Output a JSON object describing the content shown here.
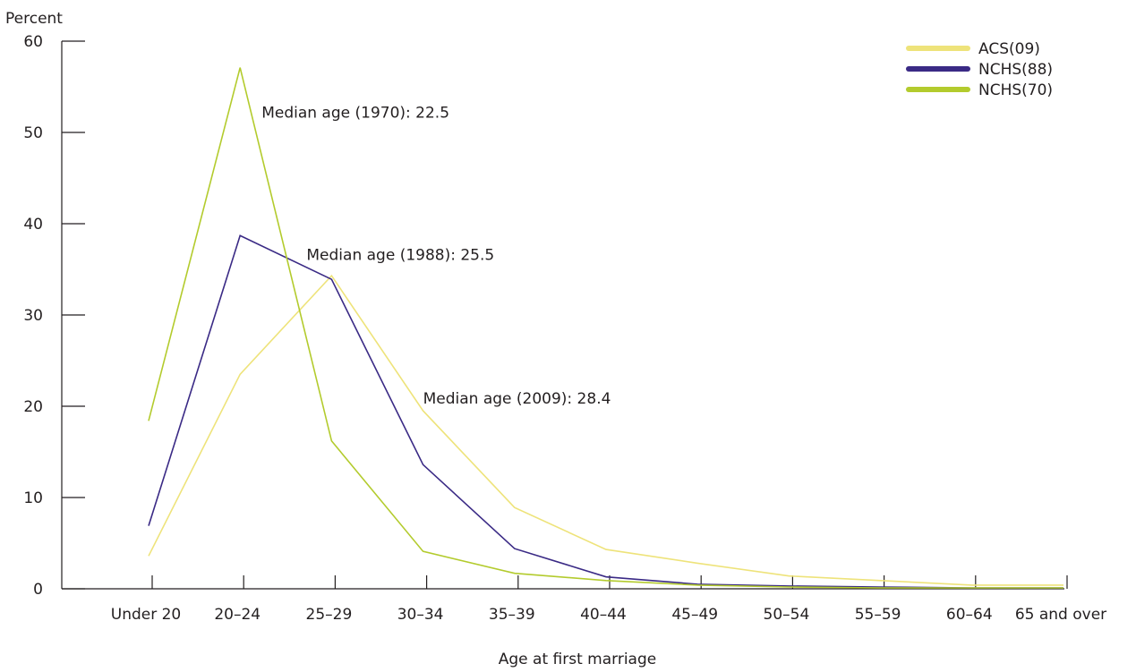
{
  "chart_data": {
    "type": "line",
    "title": "",
    "ylabel": "Percent",
    "xlabel": "Age at first marriage",
    "ylim": [
      0,
      60
    ],
    "yticks": [
      0,
      10,
      20,
      30,
      40,
      50,
      60
    ],
    "categories": [
      "Under 20",
      "20–24",
      "25–29",
      "30–34",
      "35–39",
      "40–44",
      "45–49",
      "50–54",
      "55–59",
      "60–64",
      "65 and over"
    ],
    "grid": false,
    "legend_position": "top-right",
    "series": [
      {
        "name": "ACS(09)",
        "color": "#eee37a",
        "values": [
          3.6,
          23.5,
          34.3,
          19.5,
          8.9,
          4.3,
          2.8,
          1.4,
          0.9,
          0.4,
          0.4
        ]
      },
      {
        "name": "NCHS(88)",
        "color": "#3a2a85",
        "values": [
          6.9,
          38.7,
          33.9,
          13.6,
          4.4,
          1.3,
          0.5,
          0.3,
          0.2,
          0.1,
          0.1
        ]
      },
      {
        "name": "NCHS(70)",
        "color": "#b3cb2d",
        "values": [
          18.4,
          57.1,
          16.2,
          4.1,
          1.7,
          0.9,
          0.4,
          0.2,
          0.1,
          0.1,
          0.1
        ]
      }
    ],
    "annotations": [
      {
        "text": "Median age (1970): 22.5",
        "x": "20–24",
        "y": 52.2
      },
      {
        "text": "Median age (1988): 25.5",
        "x": "25–29",
        "y": 36.6
      },
      {
        "text": "Median age (2009): 28.4",
        "x": "30–34",
        "y": 20.9
      }
    ]
  }
}
